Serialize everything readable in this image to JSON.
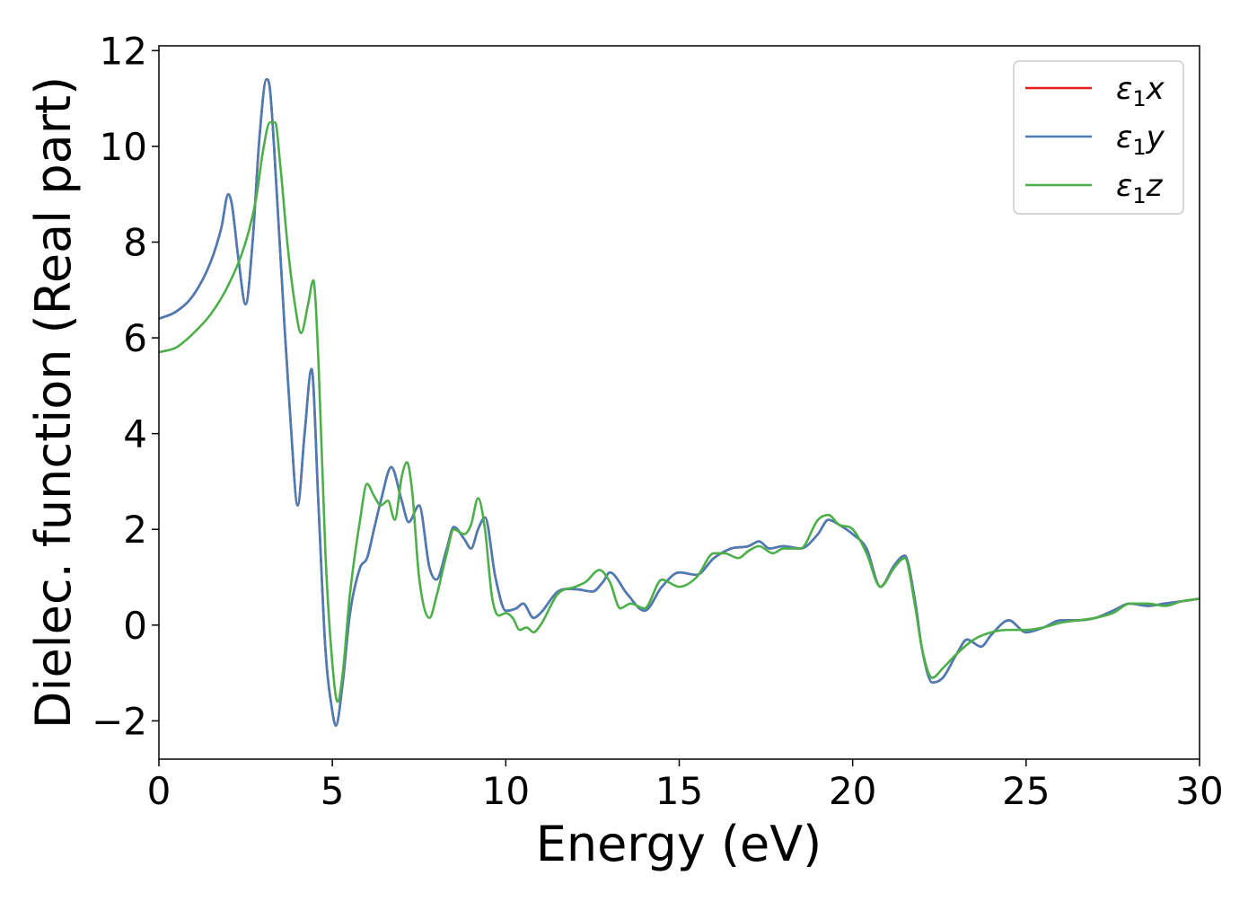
{
  "chart_data": {
    "type": "line",
    "title": "",
    "xlabel": "Energy (eV)",
    "ylabel": "Dielec. function (Real part)",
    "xlim": [
      0,
      30
    ],
    "ylim": [
      -2.8,
      12.1
    ],
    "xticks": [
      0,
      5,
      10,
      15,
      20,
      25,
      30
    ],
    "xtick_labels": [
      "0",
      "5",
      "10",
      "15",
      "20",
      "25",
      "30"
    ],
    "yticks": [
      -2,
      0,
      2,
      4,
      6,
      8,
      10,
      12
    ],
    "ytick_labels": [
      "−2",
      "0",
      "2",
      "4",
      "6",
      "8",
      "10",
      "12"
    ],
    "grid": false,
    "legend_position": "top-right",
    "series": [
      {
        "name": "ε1x",
        "label_main": "ε",
        "label_sub": "1",
        "label_var": "x",
        "color": "#e41a1c",
        "x": [
          0,
          0.5,
          1.0,
          1.5,
          1.8,
          2.0,
          2.1,
          2.3,
          2.5,
          2.7,
          2.9,
          3.1,
          3.2,
          3.4,
          3.6,
          3.8,
          4.0,
          4.2,
          4.4,
          4.6,
          4.8,
          5.0,
          5.1,
          5.3,
          5.5,
          5.8,
          6.0,
          6.2,
          6.4,
          6.7,
          7.0,
          7.2,
          7.5,
          7.8,
          8.0,
          8.3,
          8.5,
          8.8,
          9.0,
          9.2,
          9.4,
          9.7,
          10.0,
          10.3,
          10.5,
          10.8,
          11.0,
          11.5,
          12.0,
          12.5,
          12.8,
          13.0,
          13.5,
          14.0,
          14.5,
          15.0,
          15.5,
          16.0,
          16.5,
          17.0,
          17.3,
          17.6,
          18.0,
          18.5,
          19.0,
          19.3,
          19.6,
          20.0,
          20.4,
          20.8,
          21.2,
          21.5,
          21.8,
          22.0,
          22.3,
          22.6,
          23.0,
          23.3,
          23.7,
          24.0,
          24.5,
          25.0,
          25.5,
          26.0,
          26.5,
          27.0,
          27.5,
          28.0,
          28.5,
          29.0,
          29.5,
          30.0
        ],
        "y": [
          6.4,
          6.55,
          6.9,
          7.6,
          8.3,
          9.0,
          8.8,
          7.6,
          6.7,
          8.0,
          10.2,
          11.4,
          11.2,
          9.0,
          6.5,
          4.2,
          2.5,
          4.0,
          5.35,
          2.5,
          -0.5,
          -1.8,
          -2.1,
          -1.2,
          0.2,
          1.2,
          1.4,
          2.0,
          2.6,
          3.3,
          2.6,
          2.15,
          2.5,
          1.2,
          0.95,
          1.6,
          2.05,
          1.8,
          1.6,
          2.0,
          2.25,
          1.0,
          0.3,
          0.35,
          0.45,
          0.15,
          0.25,
          0.7,
          0.75,
          0.7,
          0.9,
          1.1,
          0.65,
          0.3,
          0.8,
          1.1,
          1.05,
          1.4,
          1.6,
          1.65,
          1.75,
          1.6,
          1.65,
          1.6,
          1.9,
          2.2,
          2.1,
          1.9,
          1.6,
          0.8,
          1.25,
          1.45,
          0.5,
          -0.5,
          -1.2,
          -1.1,
          -0.6,
          -0.3,
          -0.45,
          -0.2,
          0.1,
          -0.15,
          -0.05,
          0.1,
          0.1,
          0.15,
          0.3,
          0.45,
          0.4,
          0.45,
          0.5,
          0.55
        ]
      },
      {
        "name": "ε1y",
        "label_main": "ε",
        "label_sub": "1",
        "label_var": "y",
        "color": "#4a7cb5",
        "x": [
          0,
          0.5,
          1.0,
          1.5,
          1.8,
          2.0,
          2.1,
          2.3,
          2.5,
          2.7,
          2.9,
          3.1,
          3.2,
          3.4,
          3.6,
          3.8,
          4.0,
          4.2,
          4.4,
          4.6,
          4.8,
          5.0,
          5.1,
          5.3,
          5.5,
          5.8,
          6.0,
          6.2,
          6.4,
          6.7,
          7.0,
          7.2,
          7.5,
          7.8,
          8.0,
          8.3,
          8.5,
          8.8,
          9.0,
          9.2,
          9.4,
          9.7,
          10.0,
          10.3,
          10.5,
          10.8,
          11.0,
          11.5,
          12.0,
          12.5,
          12.8,
          13.0,
          13.5,
          14.0,
          14.5,
          15.0,
          15.5,
          16.0,
          16.5,
          17.0,
          17.3,
          17.6,
          18.0,
          18.5,
          19.0,
          19.3,
          19.6,
          20.0,
          20.4,
          20.8,
          21.2,
          21.5,
          21.8,
          22.0,
          22.3,
          22.6,
          23.0,
          23.3,
          23.7,
          24.0,
          24.5,
          25.0,
          25.5,
          26.0,
          26.5,
          27.0,
          27.5,
          28.0,
          28.5,
          29.0,
          29.5,
          30.0
        ],
        "y": [
          6.4,
          6.55,
          6.9,
          7.6,
          8.3,
          9.0,
          8.8,
          7.6,
          6.7,
          8.0,
          10.2,
          11.4,
          11.2,
          9.0,
          6.5,
          4.2,
          2.5,
          4.0,
          5.35,
          2.5,
          -0.5,
          -1.8,
          -2.1,
          -1.2,
          0.2,
          1.2,
          1.4,
          2.0,
          2.6,
          3.3,
          2.6,
          2.15,
          2.5,
          1.2,
          0.95,
          1.6,
          2.05,
          1.8,
          1.6,
          2.0,
          2.25,
          1.0,
          0.3,
          0.35,
          0.45,
          0.15,
          0.25,
          0.7,
          0.75,
          0.7,
          0.9,
          1.1,
          0.65,
          0.3,
          0.8,
          1.1,
          1.05,
          1.4,
          1.6,
          1.65,
          1.75,
          1.6,
          1.65,
          1.6,
          1.9,
          2.2,
          2.1,
          1.9,
          1.6,
          0.8,
          1.25,
          1.45,
          0.5,
          -0.5,
          -1.2,
          -1.1,
          -0.6,
          -0.3,
          -0.45,
          -0.2,
          0.1,
          -0.15,
          -0.05,
          0.1,
          0.1,
          0.15,
          0.3,
          0.45,
          0.4,
          0.45,
          0.5,
          0.55
        ]
      },
      {
        "name": "ε1z",
        "label_main": "ε",
        "label_sub": "1",
        "label_var": "z",
        "color": "#4daf4a",
        "x": [
          0,
          0.5,
          1.0,
          1.5,
          2.0,
          2.5,
          2.8,
          3.0,
          3.2,
          3.35,
          3.5,
          3.7,
          3.9,
          4.1,
          4.3,
          4.45,
          4.6,
          4.8,
          5.0,
          5.15,
          5.3,
          5.5,
          5.8,
          6.0,
          6.2,
          6.4,
          6.6,
          6.8,
          7.0,
          7.15,
          7.3,
          7.5,
          7.8,
          8.0,
          8.3,
          8.5,
          8.8,
          9.0,
          9.2,
          9.4,
          9.6,
          9.8,
          10.0,
          10.2,
          10.4,
          10.6,
          10.8,
          11.0,
          11.5,
          12.0,
          12.3,
          12.7,
          13.0,
          13.3,
          13.6,
          14.0,
          14.5,
          15.0,
          15.5,
          16.0,
          16.3,
          16.7,
          17.0,
          17.3,
          17.7,
          18.0,
          18.5,
          19.0,
          19.3,
          19.6,
          20.0,
          20.4,
          20.8,
          21.2,
          21.5,
          21.8,
          22.0,
          22.3,
          22.6,
          23.0,
          23.5,
          24.0,
          24.5,
          25.0,
          25.5,
          26.0,
          26.5,
          27.0,
          27.5,
          28.0,
          28.5,
          29.0,
          29.5,
          30.0
        ],
        "y": [
          5.7,
          5.8,
          6.1,
          6.5,
          7.1,
          8.0,
          8.9,
          9.9,
          10.5,
          10.5,
          9.6,
          8.0,
          6.8,
          6.1,
          6.7,
          7.2,
          5.5,
          1.5,
          -0.8,
          -1.6,
          -1.0,
          0.6,
          2.2,
          2.95,
          2.7,
          2.5,
          2.6,
          2.2,
          3.1,
          3.4,
          2.8,
          1.0,
          0.15,
          0.6,
          1.5,
          2.0,
          1.9,
          2.1,
          2.65,
          2.0,
          0.6,
          0.2,
          0.25,
          0.15,
          -0.1,
          -0.05,
          -0.15,
          0.0,
          0.65,
          0.8,
          0.9,
          1.15,
          0.9,
          0.35,
          0.45,
          0.35,
          0.95,
          0.8,
          1.0,
          1.5,
          1.5,
          1.4,
          1.55,
          1.65,
          1.5,
          1.6,
          1.6,
          2.2,
          2.3,
          2.1,
          2.0,
          1.5,
          0.8,
          1.2,
          1.4,
          0.4,
          -0.5,
          -1.1,
          -0.9,
          -0.6,
          -0.3,
          -0.15,
          -0.1,
          -0.1,
          -0.05,
          0.05,
          0.1,
          0.15,
          0.25,
          0.45,
          0.45,
          0.4,
          0.5,
          0.55
        ]
      }
    ]
  }
}
